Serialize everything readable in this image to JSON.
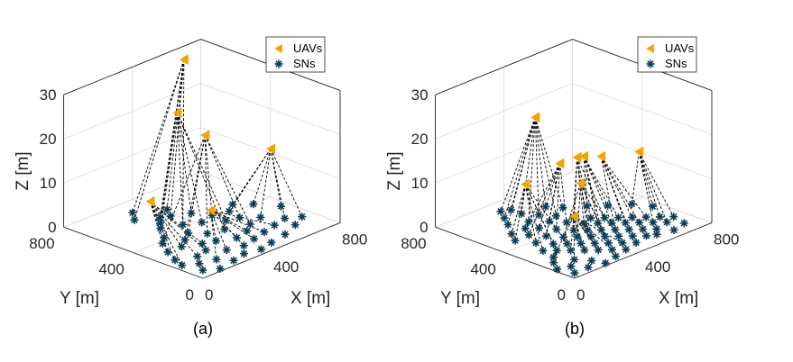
{
  "chart_data": [
    {
      "type": "scatter3d",
      "caption": "(a)",
      "xlabel": "X [m]",
      "ylabel": "Y [m]",
      "zlabel": "Z [m]",
      "xlim": [
        0,
        800
      ],
      "ylim": [
        0,
        800
      ],
      "zlim": [
        0,
        30
      ],
      "x_ticks": [
        "0",
        "400",
        "800"
      ],
      "y_ticks": [
        "0",
        "400",
        "800"
      ],
      "z_ticks": [
        "0",
        "10",
        "20",
        "30"
      ],
      "grid": true,
      "legend_position": "top-right",
      "legend": [
        {
          "label": "UAVs",
          "marker": "triangle-left",
          "color": "#f5a300"
        },
        {
          "label": "SNs",
          "marker": "asterisk",
          "color": "#0d3d56"
        }
      ],
      "uavs": [
        [
          600,
          700,
          30
        ],
        [
          480,
          620,
          21
        ],
        [
          520,
          500,
          17
        ],
        [
          700,
          300,
          14
        ],
        [
          200,
          500,
          7
        ],
        [
          400,
          350,
          4
        ]
      ],
      "sns": [
        [
          300,
          700,
          0
        ],
        [
          250,
          640,
          0
        ],
        [
          380,
          560,
          0
        ],
        [
          300,
          540,
          0
        ],
        [
          260,
          500,
          0
        ],
        [
          350,
          460,
          0
        ],
        [
          420,
          420,
          0
        ],
        [
          200,
          420,
          0
        ],
        [
          150,
          380,
          0
        ],
        [
          180,
          300,
          0
        ],
        [
          300,
          380,
          0
        ],
        [
          350,
          320,
          0
        ],
        [
          430,
          300,
          0
        ],
        [
          500,
          360,
          0
        ],
        [
          560,
          340,
          0
        ],
        [
          620,
          280,
          0
        ],
        [
          540,
          260,
          0
        ],
        [
          480,
          220,
          0
        ],
        [
          400,
          200,
          0
        ],
        [
          320,
          240,
          0
        ],
        [
          260,
          260,
          0
        ],
        [
          220,
          200,
          0
        ],
        [
          150,
          180,
          0
        ],
        [
          100,
          120,
          0
        ],
        [
          60,
          60,
          0
        ],
        [
          180,
          100,
          0
        ],
        [
          280,
          140,
          0
        ],
        [
          360,
          120,
          0
        ],
        [
          440,
          140,
          0
        ],
        [
          520,
          160,
          0
        ],
        [
          600,
          180,
          0
        ],
        [
          680,
          200,
          0
        ],
        [
          740,
          160,
          0
        ],
        [
          660,
          120,
          0
        ],
        [
          560,
          80,
          0
        ],
        [
          460,
          60,
          0
        ],
        [
          380,
          40,
          0
        ],
        [
          300,
          60,
          0
        ],
        [
          220,
          40,
          0
        ],
        [
          120,
          20,
          0
        ],
        [
          700,
          400,
          0
        ],
        [
          760,
          300,
          0
        ],
        [
          640,
          460,
          0
        ],
        [
          460,
          520,
          0
        ],
        [
          100,
          300,
          0
        ],
        [
          60,
          220,
          0
        ],
        [
          40,
          160,
          0
        ],
        [
          340,
          580,
          0
        ],
        [
          420,
          620,
          0
        ],
        [
          240,
          340,
          0
        ],
        [
          500,
          440,
          0
        ],
        [
          580,
          420,
          0
        ]
      ],
      "links": [
        [
          0,
          0
        ],
        [
          0,
          1
        ],
        [
          0,
          2
        ],
        [
          0,
          3
        ],
        [
          0,
          47
        ],
        [
          0,
          48
        ],
        [
          0,
          5
        ],
        [
          1,
          4
        ],
        [
          1,
          5
        ],
        [
          1,
          6
        ],
        [
          1,
          43
        ],
        [
          1,
          12
        ],
        [
          1,
          13
        ],
        [
          2,
          7
        ],
        [
          2,
          10
        ],
        [
          2,
          11
        ],
        [
          2,
          49
        ],
        [
          2,
          14
        ],
        [
          2,
          50
        ],
        [
          2,
          16
        ],
        [
          3,
          40
        ],
        [
          3,
          41
        ],
        [
          3,
          42
        ],
        [
          3,
          15
        ],
        [
          3,
          31
        ],
        [
          3,
          32
        ],
        [
          3,
          51
        ],
        [
          4,
          8
        ],
        [
          4,
          9
        ],
        [
          4,
          44
        ],
        [
          4,
          45
        ],
        [
          4,
          46
        ],
        [
          4,
          22
        ],
        [
          4,
          20
        ],
        [
          4,
          21
        ],
        [
          5,
          17
        ],
        [
          5,
          18
        ],
        [
          5,
          19
        ],
        [
          5,
          26
        ],
        [
          5,
          27
        ],
        [
          5,
          28
        ],
        [
          5,
          29
        ],
        [
          5,
          30
        ],
        [
          5,
          25
        ]
      ]
    },
    {
      "type": "scatter3d",
      "caption": "(b)",
      "xlabel": "X [m]",
      "ylabel": "Y [m]",
      "zlabel": "Z [m]",
      "xlim": [
        0,
        800
      ],
      "ylim": [
        0,
        800
      ],
      "zlim": [
        0,
        30
      ],
      "x_ticks": [
        "0",
        "400",
        "800"
      ],
      "y_ticks": [
        "0",
        "400",
        "800"
      ],
      "z_ticks": [
        "0",
        "10",
        "20",
        "30"
      ],
      "grid": true,
      "legend_position": "top-right",
      "legend": [
        {
          "label": "UAVs",
          "marker": "triangle-left",
          "color": "#f5a300"
        },
        {
          "label": "SNs",
          "marker": "asterisk",
          "color": "#0d3d56"
        }
      ],
      "uavs": [
        [
          440,
          660,
          20
        ],
        [
          360,
          440,
          14
        ],
        [
          420,
          400,
          15
        ],
        [
          480,
          420,
          14
        ],
        [
          560,
          400,
          13
        ],
        [
          400,
          360,
          10
        ],
        [
          700,
          320,
          13
        ],
        [
          240,
          520,
          10
        ],
        [
          300,
          300,
          5
        ]
      ],
      "sns": [
        [
          300,
          720,
          0
        ],
        [
          260,
          660,
          0
        ],
        [
          340,
          640,
          0
        ],
        [
          220,
          600,
          0
        ],
        [
          380,
          580,
          0
        ],
        [
          300,
          560,
          0
        ],
        [
          240,
          520,
          0
        ],
        [
          420,
          520,
          0
        ],
        [
          360,
          500,
          0
        ],
        [
          280,
          480,
          0
        ],
        [
          200,
          460,
          0
        ],
        [
          460,
          460,
          0
        ],
        [
          400,
          440,
          0
        ],
        [
          320,
          420,
          0
        ],
        [
          240,
          400,
          0
        ],
        [
          160,
          380,
          0
        ],
        [
          500,
          400,
          0
        ],
        [
          440,
          380,
          0
        ],
        [
          360,
          360,
          0
        ],
        [
          280,
          340,
          0
        ],
        [
          200,
          320,
          0
        ],
        [
          120,
          300,
          0
        ],
        [
          540,
          360,
          0
        ],
        [
          480,
          340,
          0
        ],
        [
          400,
          320,
          0
        ],
        [
          320,
          300,
          0
        ],
        [
          240,
          280,
          0
        ],
        [
          160,
          260,
          0
        ],
        [
          580,
          320,
          0
        ],
        [
          520,
          300,
          0
        ],
        [
          440,
          280,
          0
        ],
        [
          360,
          260,
          0
        ],
        [
          280,
          240,
          0
        ],
        [
          200,
          220,
          0
        ],
        [
          620,
          280,
          0
        ],
        [
          560,
          260,
          0
        ],
        [
          480,
          240,
          0
        ],
        [
          400,
          220,
          0
        ],
        [
          320,
          200,
          0
        ],
        [
          240,
          180,
          0
        ],
        [
          660,
          240,
          0
        ],
        [
          600,
          220,
          0
        ],
        [
          520,
          200,
          0
        ],
        [
          440,
          180,
          0
        ],
        [
          360,
          160,
          0
        ],
        [
          280,
          140,
          0
        ],
        [
          700,
          200,
          0
        ],
        [
          640,
          180,
          0
        ],
        [
          560,
          160,
          0
        ],
        [
          480,
          140,
          0
        ],
        [
          400,
          120,
          0
        ],
        [
          320,
          100,
          0
        ],
        [
          740,
          160,
          0
        ],
        [
          680,
          140,
          0
        ],
        [
          600,
          120,
          0
        ],
        [
          520,
          100,
          0
        ],
        [
          440,
          80,
          0
        ],
        [
          360,
          60,
          0
        ],
        [
          280,
          40,
          0
        ],
        [
          200,
          20,
          0
        ],
        [
          100,
          220,
          0
        ],
        [
          60,
          180,
          0
        ],
        [
          140,
          140,
          0
        ],
        [
          80,
          100,
          0
        ],
        [
          180,
          80,
          0
        ],
        [
          120,
          40,
          0
        ],
        [
          760,
          300,
          0
        ],
        [
          720,
          380,
          0
        ],
        [
          640,
          440,
          0
        ],
        [
          580,
          500,
          0
        ],
        [
          500,
          560,
          0
        ],
        [
          460,
          620,
          0
        ],
        [
          560,
          80,
          0
        ],
        [
          640,
          60,
          0
        ],
        [
          720,
          80,
          0
        ],
        [
          40,
          40,
          0
        ],
        [
          20,
          120,
          0
        ],
        [
          160,
          520,
          0
        ],
        [
          120,
          460,
          0
        ],
        [
          340,
          700,
          0
        ]
      ],
      "links": [
        [
          0,
          0
        ],
        [
          0,
          1
        ],
        [
          0,
          2
        ],
        [
          0,
          3
        ],
        [
          0,
          4
        ],
        [
          0,
          79
        ],
        [
          0,
          5
        ],
        [
          0,
          70
        ],
        [
          0,
          71
        ],
        [
          0,
          7
        ],
        [
          1,
          6
        ],
        [
          1,
          8
        ],
        [
          1,
          9
        ],
        [
          1,
          13
        ],
        [
          1,
          12
        ],
        [
          1,
          10
        ],
        [
          1,
          14
        ],
        [
          2,
          11
        ],
        [
          2,
          16
        ],
        [
          2,
          17
        ],
        [
          2,
          18
        ],
        [
          2,
          24
        ],
        [
          2,
          22
        ],
        [
          3,
          23
        ],
        [
          3,
          28
        ],
        [
          3,
          29
        ],
        [
          3,
          30
        ],
        [
          3,
          69
        ],
        [
          3,
          68
        ],
        [
          4,
          34
        ],
        [
          4,
          35
        ],
        [
          4,
          40
        ],
        [
          4,
          41
        ],
        [
          4,
          42
        ],
        [
          4,
          36
        ],
        [
          5,
          19
        ],
        [
          5,
          25
        ],
        [
          5,
          31
        ],
        [
          5,
          37
        ],
        [
          5,
          43
        ],
        [
          5,
          44
        ],
        [
          6,
          66
        ],
        [
          6,
          67
        ],
        [
          6,
          46
        ],
        [
          6,
          52
        ],
        [
          6,
          53
        ],
        [
          6,
          47
        ],
        [
          7,
          15
        ],
        [
          7,
          20
        ],
        [
          7,
          21
        ],
        [
          7,
          77
        ],
        [
          7,
          78
        ],
        [
          7,
          26
        ],
        [
          7,
          27
        ],
        [
          8,
          32
        ],
        [
          8,
          33
        ],
        [
          8,
          38
        ],
        [
          8,
          39
        ],
        [
          8,
          45
        ],
        [
          8,
          51
        ],
        [
          8,
          50
        ],
        [
          8,
          60
        ],
        [
          8,
          62
        ]
      ]
    }
  ]
}
